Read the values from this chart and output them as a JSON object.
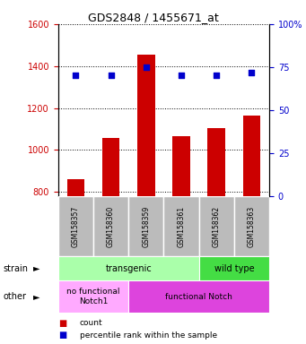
{
  "title": "GDS2848 / 1455671_at",
  "samples": [
    "GSM158357",
    "GSM158360",
    "GSM158359",
    "GSM158361",
    "GSM158362",
    "GSM158363"
  ],
  "counts": [
    860,
    1055,
    1455,
    1065,
    1105,
    1165
  ],
  "percentiles": [
    70,
    70,
    75,
    70,
    70,
    72
  ],
  "ylim_left": [
    780,
    1600
  ],
  "ylim_right": [
    0,
    100
  ],
  "yticks_left": [
    800,
    1000,
    1200,
    1400,
    1600
  ],
  "yticks_right": [
    0,
    25,
    50,
    75,
    100
  ],
  "bar_color": "#cc0000",
  "dot_color": "#0000cc",
  "bar_bottom": 780,
  "strain_groups": [
    {
      "label": "transgenic",
      "span": [
        0,
        4
      ],
      "color": "#aaffaa"
    },
    {
      "label": "wild type",
      "span": [
        4,
        6
      ],
      "color": "#44dd44"
    }
  ],
  "other_groups": [
    {
      "label": "no functional\nNotch1",
      "span": [
        0,
        2
      ],
      "color": "#ffaaff"
    },
    {
      "label": "functional Notch",
      "span": [
        2,
        6
      ],
      "color": "#dd44dd"
    }
  ],
  "strain_label": "strain",
  "other_label": "other",
  "legend_count_label": "count",
  "legend_pct_label": "percentile rank within the sample",
  "tick_color_left": "#cc0000",
  "tick_color_right": "#0000cc",
  "grid_color": "#000000",
  "bg_color": "#ffffff",
  "xticklabel_bg": "#bbbbbb"
}
